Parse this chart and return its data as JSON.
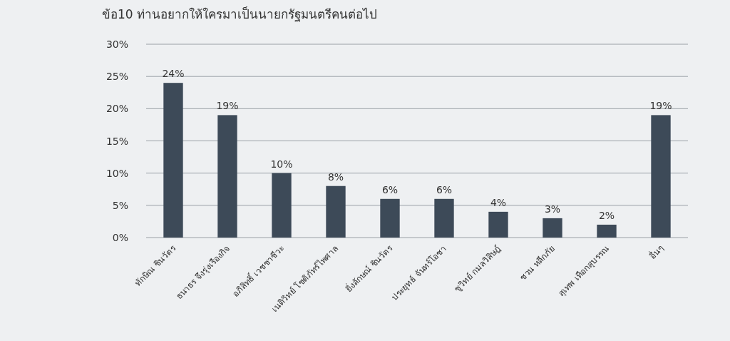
{
  "chart_data": {
    "type": "bar",
    "title": "ข้อ10 ท่านอยากให้ใครมาเป็นนายกรัฐมนตรีคนต่อไป",
    "categories": [
      "ทักษิณ ชินวัตร",
      "ธนาธร จึงรุ่งเรืองกิจ",
      "อภิสิทธิ์ เวชชาชีวะ",
      "เนติวิทย์ โชติภัทร์ไพศาล",
      "ยิ่งลักษณ์ ชินวัตร",
      "ประยุทธ์ จันทร์โอชา",
      "ชูวิทย์ กมลวิสิษฎ์",
      "ชวน หลีกภัย",
      "สุเทพ เทือกสุบรรณ",
      "อื่นๆ"
    ],
    "values": [
      24,
      19,
      10,
      8,
      6,
      6,
      4,
      3,
      2,
      19
    ],
    "color": "#3d4a58",
    "ylim": [
      0,
      30
    ],
    "yticks": [
      {
        "value": 0,
        "label": "0%"
      },
      {
        "value": 5,
        "label": "5%"
      },
      {
        "value": 10,
        "label": "10%"
      },
      {
        "value": 15,
        "label": "15%"
      },
      {
        "value": 20,
        "label": "20%"
      },
      {
        "value": 25,
        "label": "25%"
      },
      {
        "value": 30,
        "label": "30%"
      }
    ],
    "value_labels": [
      "24%",
      "19%",
      "10%",
      "8%",
      "6%",
      "6%",
      "4%",
      "3%",
      "2%",
      "19%"
    ],
    "grid": "y"
  }
}
